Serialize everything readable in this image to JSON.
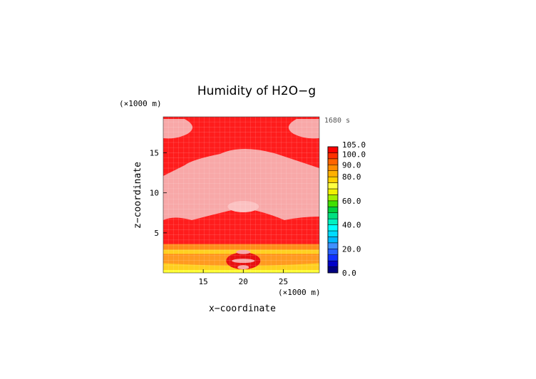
{
  "chart_data": {
    "type": "heatmap",
    "title": "Humidity of H2O−g",
    "xlabel": "x−coordinate",
    "ylabel": "z−coordinate",
    "x_unit": "(×1000 m)",
    "y_unit": "(×1000 m)",
    "time_label": "1680 s",
    "xlim": [
      10,
      29.5
    ],
    "ylim": [
      0,
      19.5
    ],
    "x_ticks": [
      15,
      20,
      25
    ],
    "y_ticks": [
      5,
      10,
      15
    ],
    "colorbar": {
      "levels": [
        0,
        5,
        10,
        15,
        20,
        25,
        30,
        35,
        40,
        45,
        50,
        55,
        60,
        65,
        70,
        75,
        80,
        85,
        90,
        95,
        100,
        105
      ],
      "colors": [
        "#00007f",
        "#0000c8",
        "#1030ff",
        "#2860ff",
        "#4090ff",
        "#00b8ff",
        "#00dcff",
        "#00ffff",
        "#00f0c0",
        "#00e080",
        "#00d040",
        "#40e000",
        "#a0f000",
        "#f0f000",
        "#ffff40",
        "#ffd000",
        "#ffb000",
        "#ff8c00",
        "#ff6400",
        "#ff3000",
        "#ff0000",
        "#ffffff"
      ],
      "labels": [
        "105.0",
        "100.0",
        "90.0",
        "80.0",
        "60.0",
        "40.0",
        "20.0",
        "0.0"
      ],
      "label_values": [
        105,
        100,
        90,
        80,
        60,
        40,
        20,
        0
      ]
    },
    "field_colors": {
      "saturated": "#ff1c1c",
      "supersaturated": "#f8a8a8",
      "deep_red": "#e81010",
      "orange": "#ff8c1a",
      "yellow": "#ffd020",
      "bright_yellow": "#ffff30"
    }
  }
}
